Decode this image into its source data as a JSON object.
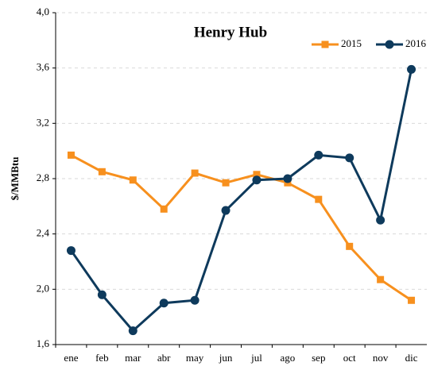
{
  "chart_data": {
    "type": "line",
    "title": "Henry Hub",
    "y_label": "$/MMBtu",
    "categories": [
      "ene",
      "feb",
      "mar",
      "abr",
      "may",
      "jun",
      "jul",
      "ago",
      "sep",
      "oct",
      "nov",
      "dic"
    ],
    "series": [
      {
        "name": "2015",
        "color": "#f7901e",
        "marker": "square",
        "values": [
          2.97,
          2.85,
          2.79,
          2.58,
          2.84,
          2.77,
          2.83,
          2.77,
          2.65,
          2.31,
          2.07,
          1.92
        ]
      },
      {
        "name": "2016",
        "color": "#0e3a5c",
        "marker": "circle",
        "values": [
          2.28,
          1.96,
          1.7,
          1.9,
          1.92,
          2.57,
          2.79,
          2.8,
          2.97,
          2.95,
          2.5,
          3.59
        ]
      }
    ],
    "ylim": [
      1.6,
      4.0
    ],
    "yticks": [
      {
        "value": 1.6,
        "label": "1,6"
      },
      {
        "value": 2.0,
        "label": "2,0"
      },
      {
        "value": 2.4,
        "label": "2,4"
      },
      {
        "value": 2.8,
        "label": "2,8"
      },
      {
        "value": 3.2,
        "label": "3,2"
      },
      {
        "value": 3.6,
        "label": "3,6"
      },
      {
        "value": 4.0,
        "label": "4,0"
      }
    ],
    "grid": true,
    "legend": "upper right"
  }
}
